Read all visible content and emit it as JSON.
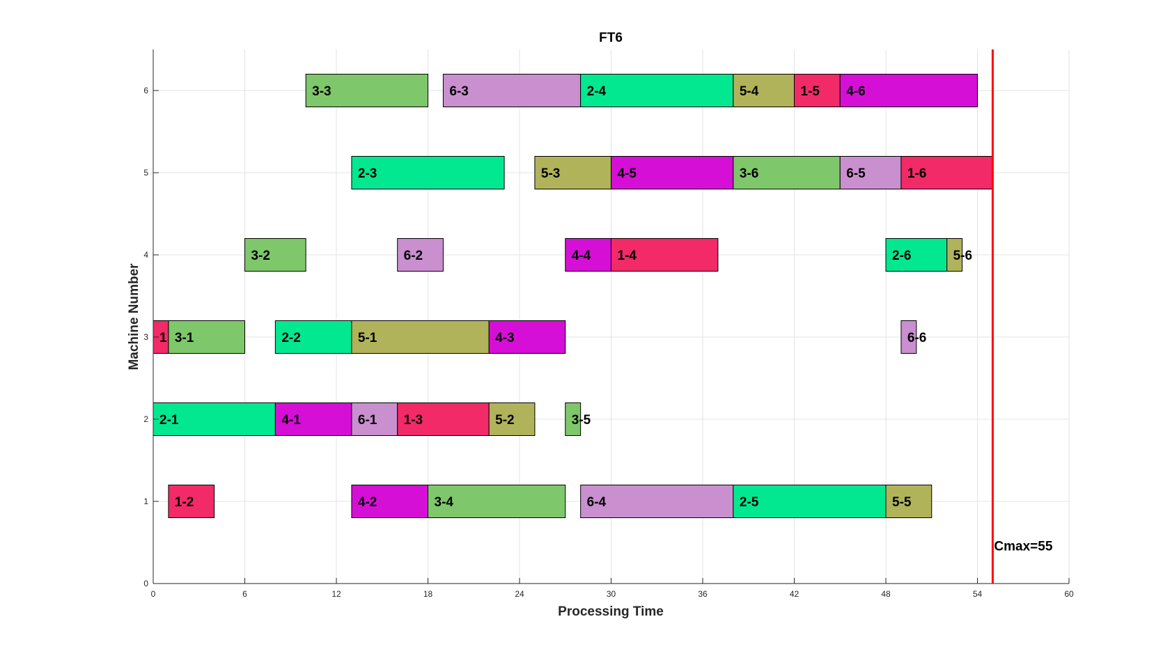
{
  "chart_data": {
    "type": "gantt",
    "title": "FT6",
    "xlabel": "Processing Time",
    "ylabel": "Machine Number",
    "xlim": [
      0,
      60
    ],
    "ylim": [
      0,
      6.5
    ],
    "xticks": [
      0,
      6,
      12,
      18,
      24,
      30,
      36,
      42,
      48,
      54,
      60
    ],
    "yticks": [
      0,
      1,
      2,
      3,
      4,
      5,
      6
    ],
    "grid": true,
    "job_colors": {
      "1": "#f22a67",
      "2": "#02e890",
      "3": "#7ec76a",
      "4": "#d60fd6",
      "5": "#b0b35a",
      "6": "#c98fcf"
    },
    "tasks": [
      {
        "machine": 1,
        "start": 1,
        "end": 4,
        "job": 1,
        "label": "1-2"
      },
      {
        "machine": 1,
        "start": 13,
        "end": 18,
        "job": 4,
        "label": "4-2"
      },
      {
        "machine": 1,
        "start": 18,
        "end": 27,
        "job": 3,
        "label": "3-4"
      },
      {
        "machine": 1,
        "start": 28,
        "end": 38,
        "job": 6,
        "label": "6-4"
      },
      {
        "machine": 1,
        "start": 38,
        "end": 48,
        "job": 2,
        "label": "2-5"
      },
      {
        "machine": 1,
        "start": 48,
        "end": 51,
        "job": 5,
        "label": "5-5"
      },
      {
        "machine": 2,
        "start": 0,
        "end": 8,
        "job": 2,
        "label": "2-1"
      },
      {
        "machine": 2,
        "start": 8,
        "end": 13,
        "job": 4,
        "label": "4-1"
      },
      {
        "machine": 2,
        "start": 13,
        "end": 16,
        "job": 6,
        "label": "6-1"
      },
      {
        "machine": 2,
        "start": 16,
        "end": 22,
        "job": 1,
        "label": "1-3"
      },
      {
        "machine": 2,
        "start": 22,
        "end": 25,
        "job": 5,
        "label": "5-2"
      },
      {
        "machine": 2,
        "start": 27,
        "end": 28,
        "job": 3,
        "label": "3-5"
      },
      {
        "machine": 3,
        "start": 0,
        "end": 1,
        "job": 1,
        "label": "1"
      },
      {
        "machine": 3,
        "start": 1,
        "end": 6,
        "job": 3,
        "label": "3-1"
      },
      {
        "machine": 3,
        "start": 8,
        "end": 13,
        "job": 2,
        "label": "2-2"
      },
      {
        "machine": 3,
        "start": 13,
        "end": 22,
        "job": 5,
        "label": "5-1"
      },
      {
        "machine": 3,
        "start": 22,
        "end": 27,
        "job": 4,
        "label": "4-3"
      },
      {
        "machine": 3,
        "start": 49,
        "end": 50,
        "job": 6,
        "label": "6-6"
      },
      {
        "machine": 4,
        "start": 6,
        "end": 10,
        "job": 3,
        "label": "3-2"
      },
      {
        "machine": 4,
        "start": 16,
        "end": 19,
        "job": 6,
        "label": "6-2"
      },
      {
        "machine": 4,
        "start": 27,
        "end": 30,
        "job": 4,
        "label": "4-4"
      },
      {
        "machine": 4,
        "start": 30,
        "end": 37,
        "job": 1,
        "label": "1-4"
      },
      {
        "machine": 4,
        "start": 48,
        "end": 52,
        "job": 2,
        "label": "2-6"
      },
      {
        "machine": 4,
        "start": 52,
        "end": 53,
        "job": 5,
        "label": "5-6"
      },
      {
        "machine": 5,
        "start": 13,
        "end": 23,
        "job": 2,
        "label": "2-3"
      },
      {
        "machine": 5,
        "start": 25,
        "end": 30,
        "job": 5,
        "label": "5-3"
      },
      {
        "machine": 5,
        "start": 30,
        "end": 38,
        "job": 4,
        "label": "4-5"
      },
      {
        "machine": 5,
        "start": 38,
        "end": 45,
        "job": 3,
        "label": "3-6"
      },
      {
        "machine": 5,
        "start": 45,
        "end": 49,
        "job": 6,
        "label": "6-5"
      },
      {
        "machine": 5,
        "start": 49,
        "end": 55,
        "job": 1,
        "label": "1-6"
      },
      {
        "machine": 6,
        "start": 10,
        "end": 18,
        "job": 3,
        "label": "3-3"
      },
      {
        "machine": 6,
        "start": 19,
        "end": 28,
        "job": 6,
        "label": "6-3"
      },
      {
        "machine": 6,
        "start": 28,
        "end": 38,
        "job": 2,
        "label": "2-4"
      },
      {
        "machine": 6,
        "start": 38,
        "end": 42,
        "job": 5,
        "label": "5-4"
      },
      {
        "machine": 6,
        "start": 42,
        "end": 45,
        "job": 1,
        "label": "1-5"
      },
      {
        "machine": 6,
        "start": 45,
        "end": 54,
        "job": 4,
        "label": "4-6"
      }
    ],
    "cmax": {
      "value": 55,
      "label": "Cmax=55",
      "color": "#ff0000"
    }
  }
}
